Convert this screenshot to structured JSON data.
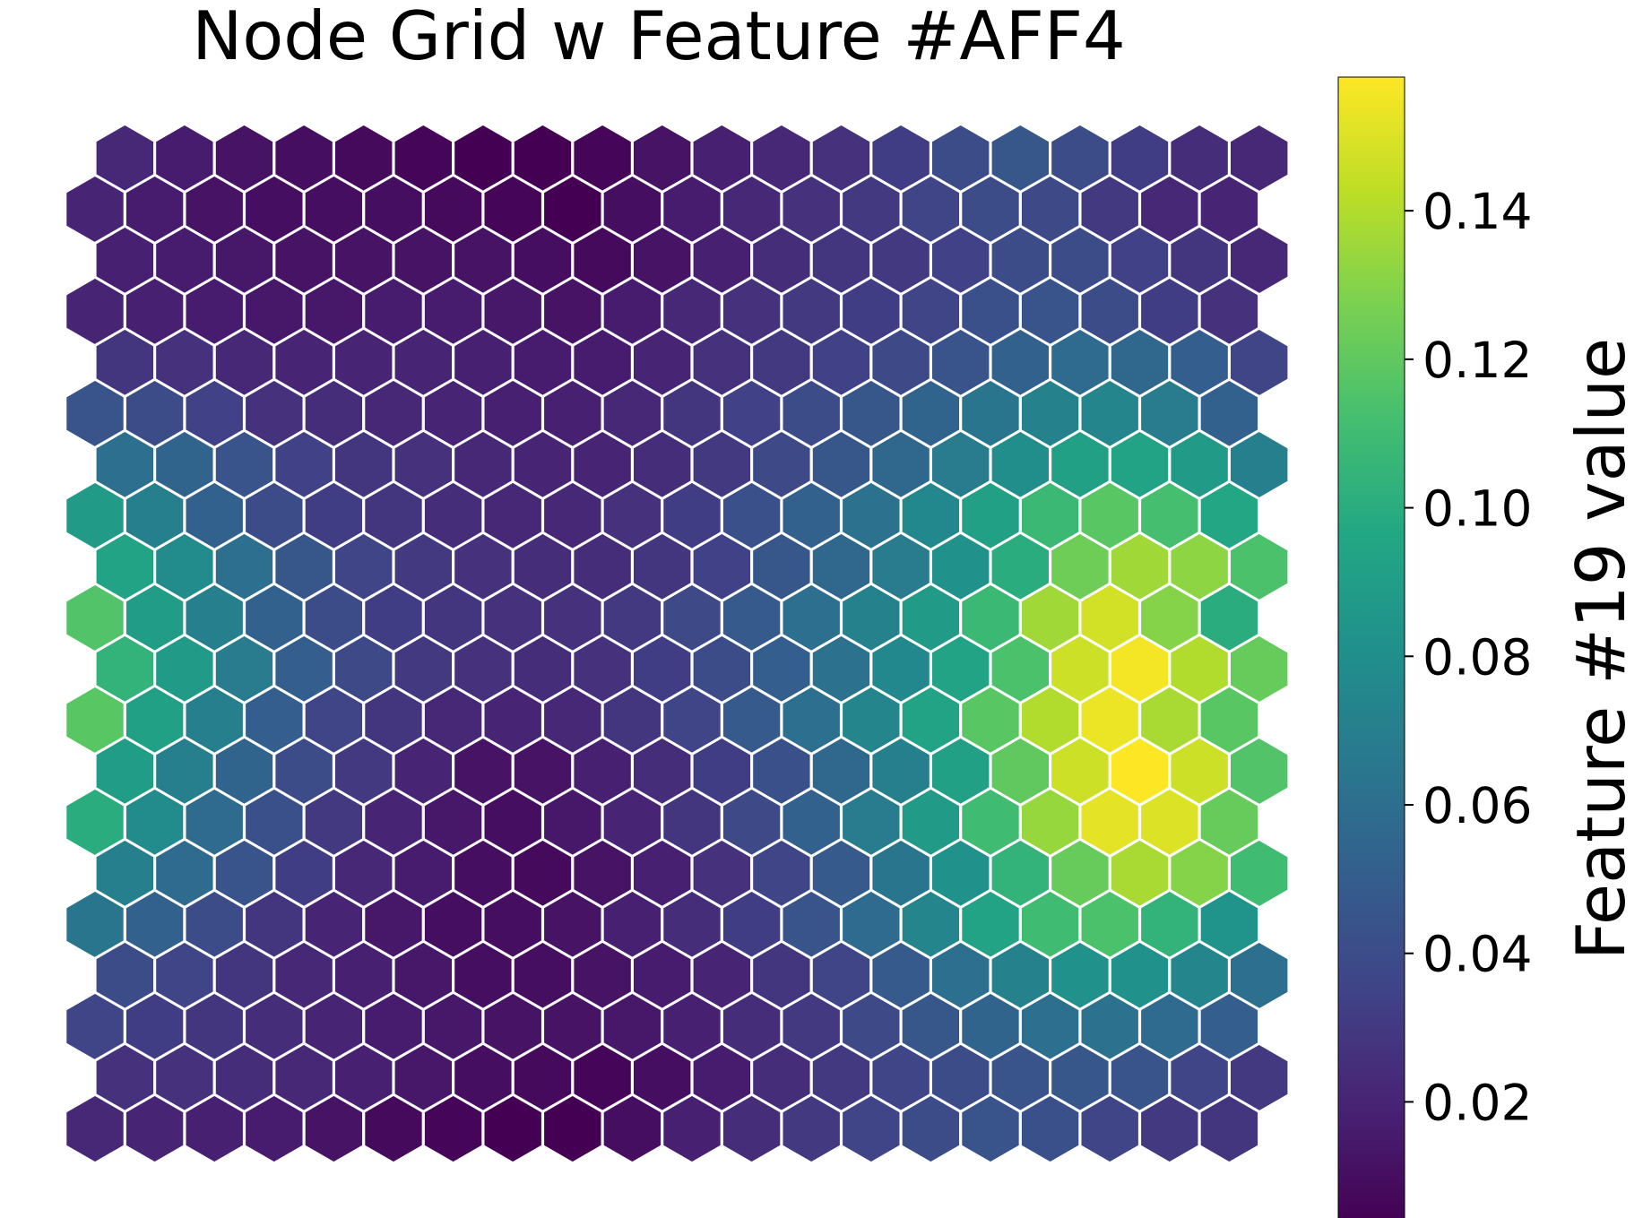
{
  "chart_data": {
    "type": "heatmap",
    "title": "Node Grid w Feature #AFF4",
    "grid": "hexagonal",
    "rows": 20,
    "columns": 20,
    "row_order": "top-to-bottom",
    "colormap": "viridis",
    "colorbar": {
      "label": "Feature #19 value",
      "range": [
        0.004,
        0.158
      ],
      "ticks": [
        0.02,
        0.04,
        0.06,
        0.08,
        0.1,
        0.12,
        0.14
      ],
      "tick_labels": [
        "0.02",
        "0.04",
        "0.06",
        "0.08",
        "0.10",
        "0.12",
        "0.14"
      ],
      "placement": "right"
    },
    "values": [
      [
        0.022,
        0.016,
        0.012,
        0.01,
        0.008,
        0.006,
        0.004,
        0.004,
        0.006,
        0.012,
        0.018,
        0.022,
        0.026,
        0.032,
        0.04,
        0.046,
        0.04,
        0.032,
        0.024,
        0.022
      ],
      [
        0.02,
        0.016,
        0.012,
        0.01,
        0.01,
        0.01,
        0.008,
        0.006,
        0.004,
        0.01,
        0.016,
        0.022,
        0.026,
        0.03,
        0.036,
        0.04,
        0.038,
        0.03,
        0.022,
        0.02
      ],
      [
        0.018,
        0.016,
        0.014,
        0.012,
        0.012,
        0.012,
        0.012,
        0.01,
        0.008,
        0.012,
        0.018,
        0.024,
        0.028,
        0.03,
        0.034,
        0.04,
        0.04,
        0.034,
        0.028,
        0.022
      ],
      [
        0.02,
        0.018,
        0.016,
        0.014,
        0.014,
        0.016,
        0.016,
        0.014,
        0.012,
        0.016,
        0.022,
        0.026,
        0.03,
        0.032,
        0.036,
        0.042,
        0.044,
        0.04,
        0.032,
        0.026
      ],
      [
        0.028,
        0.026,
        0.022,
        0.02,
        0.02,
        0.02,
        0.018,
        0.016,
        0.016,
        0.02,
        0.026,
        0.03,
        0.034,
        0.038,
        0.044,
        0.052,
        0.058,
        0.056,
        0.05,
        0.036
      ],
      [
        0.044,
        0.04,
        0.034,
        0.026,
        0.024,
        0.022,
        0.02,
        0.018,
        0.018,
        0.022,
        0.028,
        0.034,
        0.04,
        0.046,
        0.054,
        0.064,
        0.072,
        0.074,
        0.068,
        0.052
      ],
      [
        0.06,
        0.054,
        0.044,
        0.034,
        0.028,
        0.026,
        0.022,
        0.02,
        0.02,
        0.024,
        0.03,
        0.038,
        0.046,
        0.056,
        0.068,
        0.08,
        0.092,
        0.094,
        0.088,
        0.07
      ],
      [
        0.088,
        0.07,
        0.052,
        0.04,
        0.032,
        0.028,
        0.024,
        0.022,
        0.022,
        0.026,
        0.032,
        0.042,
        0.052,
        0.062,
        0.076,
        0.092,
        0.108,
        0.118,
        0.112,
        0.096
      ],
      [
        0.094,
        0.078,
        0.06,
        0.046,
        0.036,
        0.03,
        0.026,
        0.024,
        0.024,
        0.028,
        0.034,
        0.046,
        0.056,
        0.068,
        0.082,
        0.1,
        0.124,
        0.136,
        0.132,
        0.114
      ],
      [
        0.116,
        0.09,
        0.07,
        0.052,
        0.04,
        0.032,
        0.028,
        0.026,
        0.026,
        0.03,
        0.038,
        0.048,
        0.06,
        0.072,
        0.088,
        0.108,
        0.136,
        0.148,
        0.13,
        0.1
      ],
      [
        0.104,
        0.088,
        0.068,
        0.05,
        0.038,
        0.03,
        0.026,
        0.024,
        0.026,
        0.032,
        0.04,
        0.05,
        0.062,
        0.076,
        0.094,
        0.114,
        0.146,
        0.156,
        0.14,
        0.122
      ],
      [
        0.118,
        0.092,
        0.07,
        0.05,
        0.036,
        0.028,
        0.022,
        0.02,
        0.022,
        0.028,
        0.036,
        0.048,
        0.06,
        0.074,
        0.094,
        0.118,
        0.14,
        0.154,
        0.138,
        0.118
      ],
      [
        0.09,
        0.07,
        0.054,
        0.04,
        0.03,
        0.02,
        0.012,
        0.012,
        0.018,
        0.024,
        0.032,
        0.042,
        0.056,
        0.07,
        0.092,
        0.12,
        0.146,
        0.158,
        0.146,
        0.116
      ],
      [
        0.1,
        0.078,
        0.058,
        0.042,
        0.03,
        0.02,
        0.014,
        0.01,
        0.014,
        0.02,
        0.028,
        0.038,
        0.052,
        0.068,
        0.088,
        0.11,
        0.134,
        0.152,
        0.15,
        0.122
      ],
      [
        0.07,
        0.058,
        0.044,
        0.032,
        0.022,
        0.016,
        0.01,
        0.008,
        0.012,
        0.018,
        0.026,
        0.036,
        0.048,
        0.064,
        0.082,
        0.104,
        0.122,
        0.138,
        0.13,
        0.11
      ],
      [
        0.064,
        0.052,
        0.04,
        0.028,
        0.02,
        0.014,
        0.01,
        0.01,
        0.012,
        0.018,
        0.024,
        0.032,
        0.044,
        0.058,
        0.074,
        0.094,
        0.11,
        0.114,
        0.104,
        0.084
      ],
      [
        0.04,
        0.036,
        0.028,
        0.022,
        0.018,
        0.014,
        0.01,
        0.01,
        0.012,
        0.016,
        0.02,
        0.028,
        0.036,
        0.048,
        0.06,
        0.072,
        0.082,
        0.082,
        0.074,
        0.06
      ],
      [
        0.036,
        0.032,
        0.028,
        0.024,
        0.02,
        0.016,
        0.014,
        0.012,
        0.012,
        0.014,
        0.018,
        0.024,
        0.03,
        0.038,
        0.046,
        0.054,
        0.06,
        0.062,
        0.058,
        0.05
      ],
      [
        0.026,
        0.026,
        0.024,
        0.022,
        0.018,
        0.014,
        0.01,
        0.008,
        0.006,
        0.01,
        0.016,
        0.024,
        0.03,
        0.036,
        0.04,
        0.044,
        0.046,
        0.044,
        0.036,
        0.03
      ],
      [
        0.022,
        0.02,
        0.018,
        0.016,
        0.012,
        0.008,
        0.006,
        0.004,
        0.004,
        0.01,
        0.018,
        0.024,
        0.03,
        0.036,
        0.04,
        0.044,
        0.042,
        0.036,
        0.03,
        0.028
      ]
    ]
  }
}
